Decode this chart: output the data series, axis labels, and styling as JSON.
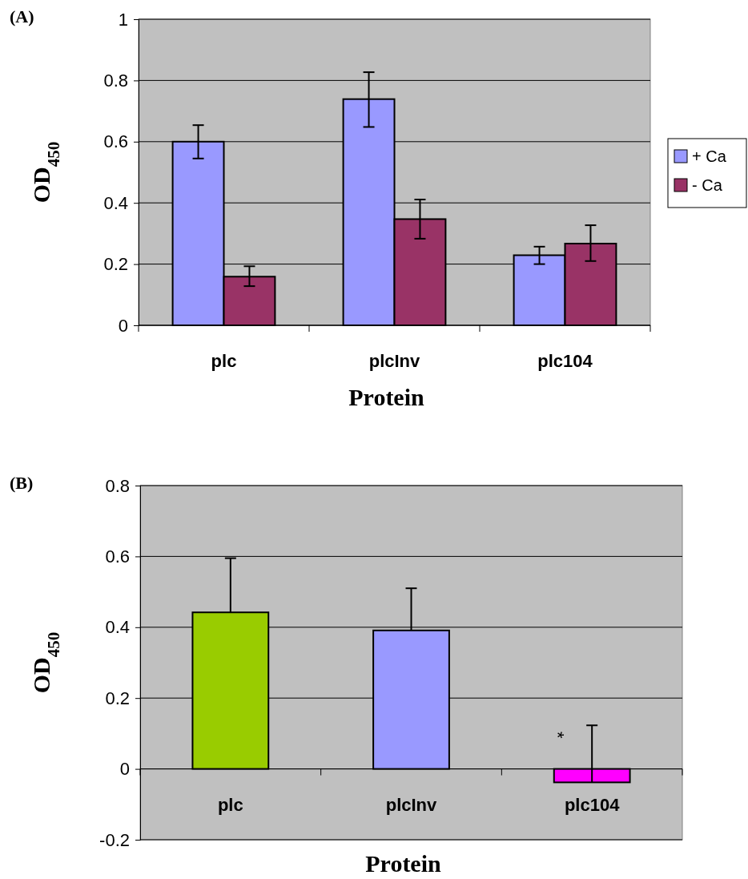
{
  "chart_data": [
    {
      "type": "bar",
      "title": "(A)",
      "xlabel": "Protein",
      "ylabel": "OD$_{450}$",
      "categories": [
        "plc",
        "plcInv",
        "plc104"
      ],
      "series": [
        {
          "name": "+ Ca",
          "color": "#9999ff",
          "values": [
            0.6,
            0.739,
            0.229
          ],
          "errors": [
            [
              0.545,
              0.654
            ],
            [
              0.648,
              0.827
            ],
            [
              0.2,
              0.257
            ]
          ]
        },
        {
          "name": "- Ca",
          "color": "#993366",
          "values": [
            0.159,
            0.347,
            0.267
          ],
          "errors": [
            [
              0.128,
              0.193
            ],
            [
              0.283,
              0.411
            ],
            [
              0.21,
              0.327
            ]
          ]
        }
      ],
      "ylim": [
        0,
        1
      ],
      "yticks": [
        0,
        0.2,
        0.4,
        0.6,
        0.8,
        1
      ],
      "grid": "y",
      "legend": "right"
    },
    {
      "type": "bar",
      "title": "(B)",
      "xlabel": "Protein",
      "ylabel": "OD$_{450}$",
      "categories": [
        "plc",
        "plcInv",
        "plc104"
      ],
      "values": [
        0.442,
        0.391,
        -0.038
      ],
      "colors": [
        "#99cc00",
        "#9999ff",
        "#ff00ff"
      ],
      "errors": [
        [
          0.442,
          0.595
        ],
        [
          0.391,
          0.51
        ],
        [
          -0.038,
          0.123
        ]
      ],
      "annotations": [
        {
          "text": "*",
          "x": "plc104",
          "y": 0.096
        }
      ],
      "ylim": [
        -0.2,
        0.8
      ],
      "yticks": [
        -0.2,
        0,
        0.2,
        0.4,
        0.6,
        0.8
      ],
      "grid": "y",
      "legend": false
    }
  ]
}
